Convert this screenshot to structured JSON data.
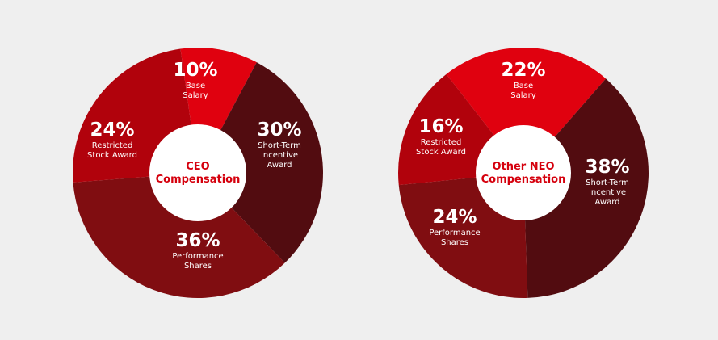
{
  "chart_data": [
    {
      "type": "pie",
      "title": "CEO Compensation",
      "title_lines": [
        "CEO",
        "Compensation"
      ],
      "slices": [
        {
          "label_lines": [
            "Base",
            "Salary"
          ],
          "value": 10,
          "display": "10%",
          "color": "#e0010f"
        },
        {
          "label_lines": [
            "Short-Term",
            "Incentive",
            "Award"
          ],
          "value": 30,
          "display": "30%",
          "color": "#520c10"
        },
        {
          "label_lines": [
            "Performance",
            "Shares"
          ],
          "value": 36,
          "display": "36%",
          "color": "#800d11"
        },
        {
          "label_lines": [
            "Restricted",
            "Stock Award"
          ],
          "value": 24,
          "display": "24%",
          "color": "#b1020c"
        }
      ]
    },
    {
      "type": "pie",
      "title": "Other NEO Compensation",
      "title_lines": [
        "Other NEO",
        "Compensation"
      ],
      "slices": [
        {
          "label_lines": [
            "Base",
            "Salary"
          ],
          "value": 22,
          "display": "22%",
          "color": "#e0010f"
        },
        {
          "label_lines": [
            "Short-Term",
            "Incentive",
            "Award"
          ],
          "value": 38,
          "display": "38%",
          "color": "#520c10"
        },
        {
          "label_lines": [
            "Performance",
            "Shares"
          ],
          "value": 24,
          "display": "24%",
          "color": "#800d11"
        },
        {
          "label_lines": [
            "Restricted",
            "Stock Award"
          ],
          "value": 16,
          "display": "16%",
          "color": "#b1020c"
        }
      ]
    }
  ],
  "colors": {
    "background": "#efefef",
    "center_fill": "#ffffff",
    "center_text": "#d5000d",
    "label_text": "#ffffff"
  }
}
